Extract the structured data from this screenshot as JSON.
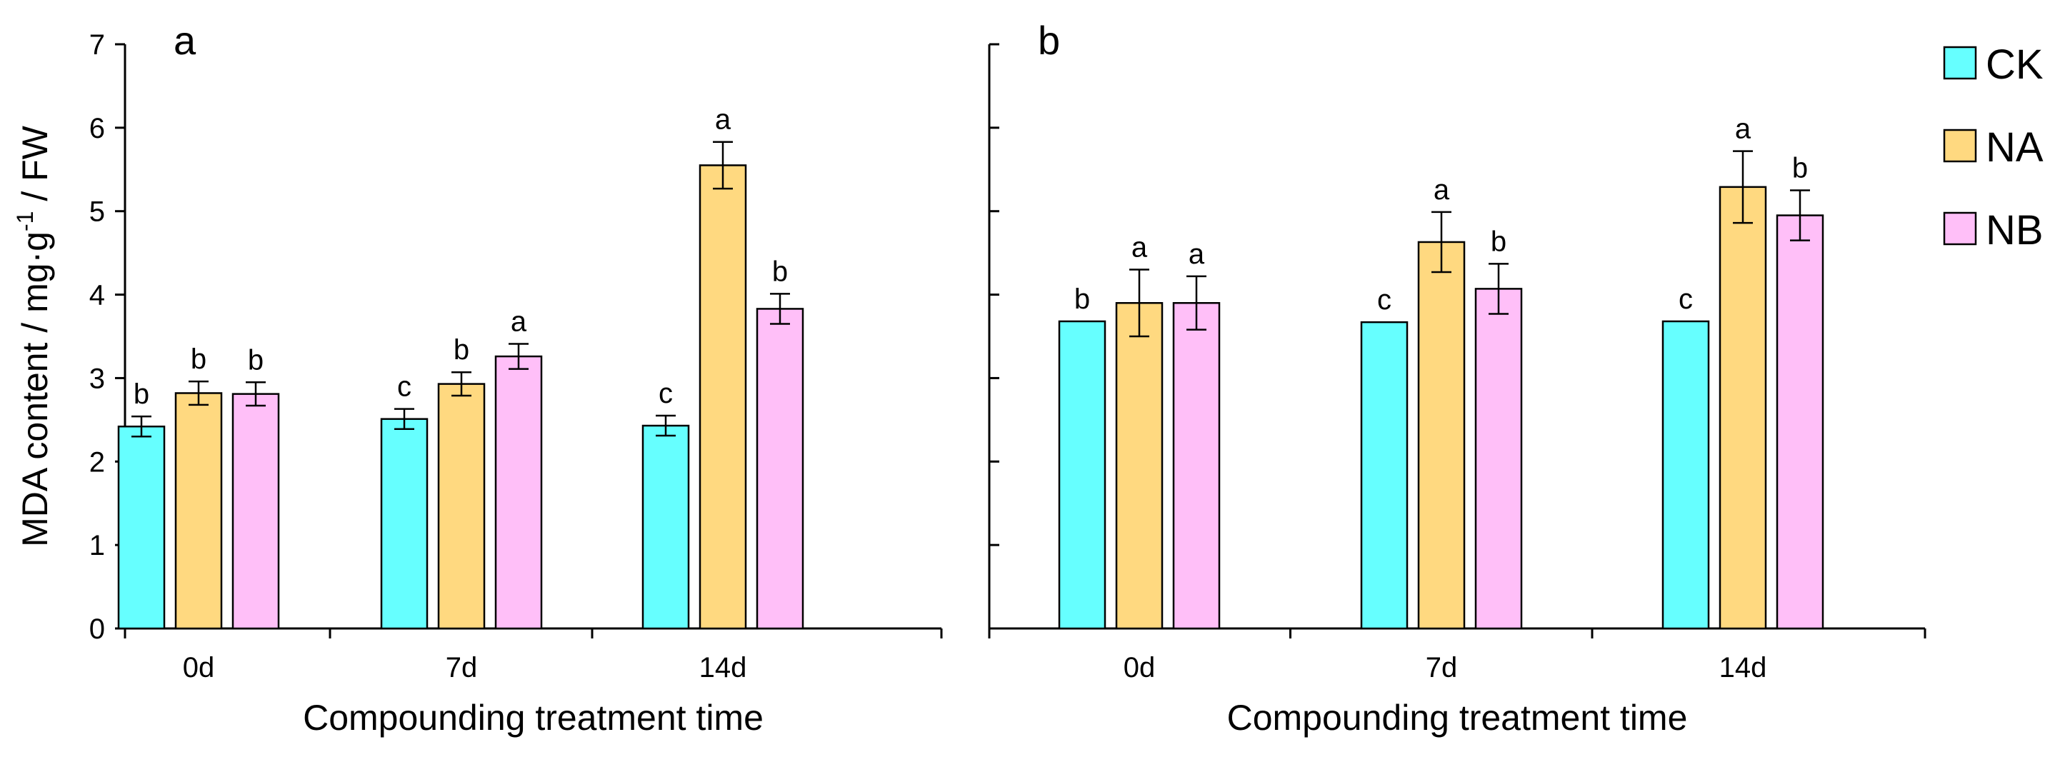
{
  "chart_data": {
    "type": "bar",
    "ylabel_parts": {
      "prefix": "MDA content / mg·g",
      "superscript": "-1",
      "suffix": " / FW"
    },
    "ylim": [
      0,
      7
    ],
    "yticks": [
      0,
      1,
      2,
      3,
      4,
      5,
      6,
      7
    ],
    "legend": {
      "position": "top-right",
      "entries": [
        {
          "name": "CK",
          "color": "#66ffff"
        },
        {
          "name": "NA",
          "color": "#ffd980"
        },
        {
          "name": "NB",
          "color": "#ffbff8"
        }
      ]
    },
    "panels": [
      {
        "label": "a",
        "xlabel": "Compounding treatment time",
        "categories": [
          "0d",
          "7d",
          "14d"
        ],
        "show_tick_labels": true,
        "series": [
          {
            "name": "CK",
            "values": [
              2.42,
              2.51,
              2.43
            ],
            "errors": [
              0.12,
              0.12,
              0.12
            ],
            "letters": [
              "b",
              "c",
              "c"
            ]
          },
          {
            "name": "NA",
            "values": [
              2.82,
              2.93,
              5.55
            ],
            "errors": [
              0.14,
              0.14,
              0.28
            ],
            "letters": [
              "b",
              "b",
              "a"
            ]
          },
          {
            "name": "NB",
            "values": [
              2.81,
              3.26,
              3.83
            ],
            "errors": [
              0.14,
              0.15,
              0.18
            ],
            "letters": [
              "b",
              "a",
              "b"
            ]
          }
        ]
      },
      {
        "label": "b",
        "xlabel": "Compounding treatment time",
        "categories": [
          "0d",
          "7d",
          "14d"
        ],
        "show_tick_labels": false,
        "series": [
          {
            "name": "CK",
            "values": [
              3.68,
              3.67,
              3.68
            ],
            "errors": [
              0.0,
              0.0,
              0.0
            ],
            "letters": [
              "b",
              "c",
              "c"
            ]
          },
          {
            "name": "NA",
            "values": [
              3.9,
              4.63,
              5.29
            ],
            "errors": [
              0.4,
              0.36,
              0.43
            ],
            "letters": [
              "a",
              "a",
              "a"
            ]
          },
          {
            "name": "NB",
            "values": [
              3.9,
              4.07,
              4.95
            ],
            "errors": [
              0.32,
              0.3,
              0.3
            ],
            "letters": [
              "a",
              "b",
              "b"
            ]
          }
        ]
      }
    ]
  }
}
